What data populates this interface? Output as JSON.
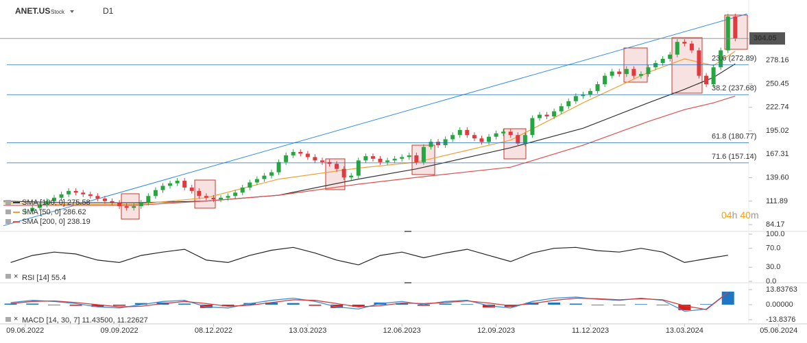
{
  "header": {
    "symbol": "ANET.US",
    "kind": "Stock",
    "timeframe": "D1"
  },
  "countdown": [
    "04",
    "h",
    "40",
    "m"
  ],
  "chart_data": [
    {
      "type": "candlestick",
      "x": [
        0,
        1,
        2,
        3,
        4,
        5,
        6,
        7,
        8,
        9,
        10,
        11,
        12,
        13,
        14,
        15,
        16,
        17,
        18,
        19,
        20,
        21,
        22,
        23,
        24,
        25,
        26,
        27,
        28,
        29,
        30,
        31,
        32,
        33,
        34,
        35,
        36,
        37,
        38,
        39,
        40,
        41,
        42,
        43,
        44,
        45,
        46,
        47,
        48,
        49,
        50,
        51,
        52,
        53,
        54,
        55,
        56,
        57,
        58,
        59,
        60,
        61,
        62,
        63,
        64,
        65,
        66,
        67,
        68,
        69,
        70,
        71,
        72,
        73,
        74,
        75,
        76,
        77,
        78,
        79,
        80,
        81,
        82,
        83,
        84,
        85,
        86,
        87,
        88,
        89,
        90,
        91,
        92,
        93,
        94,
        95,
        96,
        97,
        98
      ],
      "values": [
        100,
        104,
        108,
        112,
        116,
        120,
        124,
        122,
        120,
        118,
        115,
        112,
        110,
        106,
        104,
        106,
        110,
        118,
        125,
        130,
        133,
        136,
        128,
        124,
        118,
        116,
        114,
        116,
        118,
        122,
        128,
        134,
        138,
        142,
        146,
        158,
        166,
        170,
        168,
        164,
        160,
        158,
        156,
        150,
        140,
        142,
        160,
        165,
        162,
        158,
        160,
        162,
        164,
        166,
        158,
        176,
        182,
        178,
        185,
        190,
        196,
        190,
        186,
        182,
        188,
        192,
        194,
        190,
        180,
        190,
        210,
        214,
        212,
        218,
        224,
        230,
        236,
        238,
        242,
        250,
        260,
        265,
        262,
        268,
        260,
        262,
        270,
        275,
        280,
        285,
        300,
        298,
        290,
        260,
        250,
        270,
        290,
        330,
        304.05
      ],
      "up_color": "#26a541",
      "down_color": "#e0393e",
      "xlim": [
        -3,
        108
      ],
      "ylim": [
        77,
        343
      ],
      "yticks": [
        84.17,
        111.89,
        {
          "value": 139.6,
          "label": "139.60"
        },
        167.31,
        195.02,
        222.74,
        250.45,
        278.16
      ],
      "last_price": 304.05,
      "trendline": {
        "x": [
          -3,
          99.6
        ],
        "values": [
          83,
          333
        ],
        "color": "#2f8de4"
      },
      "fib_color": "#1f6fbf",
      "fib_levels": [
        {
          "value": 272.89,
          "label": "23.6 (272.89)"
        },
        {
          "value": 237.68,
          "label": "38.2 (237.68)"
        },
        {
          "value": 180.77,
          "label": "61.8 (180.77)"
        },
        {
          "value": 157.14,
          "label": "71.6 (157.14)"
        }
      ],
      "moving_averages": [
        {
          "name": "SMA [100, 0]",
          "last": 275.58,
          "color": "#333333",
          "x": [
            -3,
            6,
            15,
            25,
            35,
            46,
            54,
            67,
            77,
            86,
            91,
            95,
            98
          ],
          "values": [
            112,
            110,
            110,
            112,
            119,
            138,
            150,
            175,
            198,
            228,
            244,
            258,
            274
          ]
        },
        {
          "name": "SMA [50, 0]",
          "last": 286.62,
          "color": "#f0a030",
          "x": [
            -3,
            6,
            15,
            25,
            35,
            46,
            54,
            67,
            77,
            86,
            91,
            95,
            98
          ],
          "values": [
            110,
            108,
            108,
            116,
            138,
            151,
            158,
            184,
            228,
            264,
            280,
            272,
            289
          ]
        },
        {
          "name": "SMA [200, 0]",
          "last": 238.19,
          "color": "#e05050",
          "x": [
            -3,
            6,
            15,
            25,
            35,
            46,
            54,
            67,
            77,
            86,
            91,
            95,
            98
          ],
          "values": [
            107,
            107,
            107,
            112,
            119,
            132,
            140,
            152,
            178,
            206,
            220,
            228,
            236
          ]
        }
      ]
    },
    {
      "type": "line",
      "label": "RSI [14]",
      "last": 55.4,
      "color": "#222222",
      "x": [
        -2,
        1,
        4,
        7,
        10,
        13,
        16,
        19,
        22,
        25,
        28,
        31,
        34,
        37,
        40,
        43,
        46,
        49,
        52,
        55,
        58,
        61,
        64,
        67,
        70,
        73,
        76,
        79,
        82,
        85,
        88,
        91,
        94,
        97
      ],
      "values": [
        40,
        55,
        62,
        58,
        45,
        40,
        55,
        62,
        68,
        45,
        40,
        55,
        66,
        72,
        60,
        45,
        35,
        55,
        62,
        50,
        60,
        68,
        55,
        42,
        60,
        70,
        72,
        65,
        62,
        70,
        62,
        40,
        48,
        55.4
      ],
      "xlim": [
        -3,
        108
      ],
      "ylim": [
        0,
        100
      ],
      "yticks": [
        {
          "value": 100,
          "label": "100.0"
        },
        {
          "value": 70,
          "label": "70.0"
        },
        {
          "value": 30,
          "label": "30.0"
        },
        {
          "value": 0,
          "label": "0.0"
        }
      ]
    },
    {
      "type": "macd",
      "label": "MACD [14, 30, 7]",
      "last_values": [
        {
          "value": 11.435,
          "label": "11.43500,"
        },
        11.22627
      ],
      "x": [
        -2,
        1,
        4,
        7,
        10,
        13,
        16,
        19,
        22,
        25,
        28,
        31,
        34,
        37,
        40,
        43,
        46,
        49,
        52,
        55,
        58,
        61,
        64,
        67,
        70,
        73,
        76,
        79,
        82,
        85,
        88,
        91,
        94,
        97
      ],
      "series": [
        {
          "name": "MACD",
          "color": "#3a8fd9",
          "values": [
            2,
            4,
            3,
            1,
            -2,
            -3,
            0,
            3,
            4,
            -2,
            -3,
            1,
            4,
            6,
            3,
            -2,
            -4,
            1,
            3,
            0,
            3,
            4,
            -1,
            -3,
            3,
            6,
            7,
            5,
            4,
            6,
            4,
            -6,
            -4,
            11.435
          ]
        },
        {
          "name": "Signal",
          "color": "#d33b3b",
          "values": [
            1,
            3,
            3.5,
            2,
            0,
            -2,
            -1.5,
            1,
            3,
            1,
            -1.5,
            -0.5,
            2,
            4.5,
            4,
            1,
            -2,
            -1,
            1.5,
            1,
            2,
            3.5,
            1.5,
            -1,
            1,
            4,
            6,
            5.5,
            4.5,
            5.5,
            4.5,
            -1,
            -4.5,
            11.22627
          ]
        }
      ],
      "histogram": [
        1,
        1,
        -0.5,
        -1,
        -2,
        -1,
        1.5,
        2,
        1,
        -3,
        -1.5,
        1.5,
        2,
        1.5,
        -1,
        -3,
        -2,
        2,
        1.5,
        -1,
        1,
        0.5,
        -2.5,
        -2,
        2,
        2,
        1,
        -0.5,
        -0.5,
        0.5,
        -0.5,
        -5,
        0.5,
        12
      ],
      "hist_up_color": "#1f77c4",
      "hist_down_color": "#d62020",
      "xlim": [
        -3,
        108
      ],
      "ylim": [
        -17.6,
        18.9
      ],
      "yticks": [
        13.83763,
        {
          "value": 0,
          "label": "0.00000"
        },
        -13.8376
      ],
      "xticks": [
        {
          "value": 0,
          "label": "09.06.2022"
        },
        {
          "value": 13,
          "label": "09.09.2022"
        },
        {
          "value": 26,
          "label": "08.12.2022"
        },
        {
          "value": 39,
          "label": "13.03.2023"
        },
        {
          "value": 52,
          "label": "12.06.2023"
        },
        {
          "value": 65,
          "label": "12.09.2023"
        },
        {
          "value": 78,
          "label": "11.12.2023"
        },
        {
          "value": 91,
          "label": "13.03.2024"
        },
        {
          "value": 104,
          "label": "05.06.2024"
        }
      ]
    }
  ]
}
